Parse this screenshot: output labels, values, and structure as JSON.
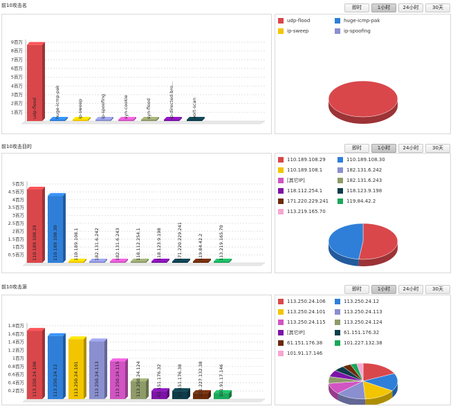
{
  "tabs": [
    "即时",
    "1小时",
    "24小时",
    "30天"
  ],
  "active_tab": 1,
  "sections": [
    {
      "title": "前10攻击名",
      "chart_data": {
        "type": "bar",
        "categories": [
          "udp-flood",
          "huge-icmp-pak",
          "ip-sweep",
          "ip-spoofing",
          "syn-cookie",
          "syn-flood",
          "ip-directed-bro...",
          "port-scan"
        ],
        "values": [
          8.7,
          0.1,
          0.1,
          0.1,
          0.1,
          0.1,
          0.1,
          0.1
        ],
        "colors": [
          "#d9474b",
          "#2f7fd8",
          "#f2c500",
          "#8a8fcf",
          "#d154c2",
          "#8e9b69",
          "#7d12a8",
          "#0d3d4b"
        ],
        "y_ticks": [
          "1百万",
          "2百万",
          "3百万",
          "4百万",
          "5百万",
          "6百万",
          "7百万",
          "8百万",
          "9百万"
        ],
        "ylim": [
          0,
          9
        ],
        "legend": [
          {
            "label": "udp-flood",
            "color": "#d9474b"
          },
          {
            "label": "huge-icmp-pak",
            "color": "#2f7fd8"
          },
          {
            "label": "ip-sweep",
            "color": "#f2c500"
          },
          {
            "label": "ip-spoofing",
            "color": "#8a8fcf"
          }
        ],
        "pie": [
          {
            "value": 100,
            "color": "#d9474b"
          }
        ]
      }
    },
    {
      "title": "前10攻击目的",
      "chart_data": {
        "type": "bar",
        "categories": [
          "110.189.108.29",
          "110.189.108.30",
          "110.189.108.1",
          "182.131.6.242",
          "182.131.6.243",
          "118.112.254.1",
          "118.123.9.198",
          "171.220.229.241",
          "119.84.42.2",
          "113.219.165.70"
        ],
        "values": [
          4.65,
          4.25,
          0.04,
          0.04,
          0.04,
          0.04,
          0.04,
          0.04,
          0.04,
          0.04
        ],
        "colors": [
          "#d9474b",
          "#2f7fd8",
          "#f2c500",
          "#8a8fcf",
          "#d154c2",
          "#8e9b69",
          "#7d12a8",
          "#0d3d4b",
          "#6b2a0a",
          "#1aa85a"
        ],
        "y_ticks": [
          "0.5百万",
          "1百万",
          "1.5百万",
          "2百万",
          "2.5百万",
          "3百万",
          "3.5百万",
          "4百万",
          "4.5百万",
          "5百万"
        ],
        "ylim": [
          0,
          5
        ],
        "legend": [
          {
            "label": "110.189.108.29",
            "color": "#d9474b"
          },
          {
            "label": "110.189.108.30",
            "color": "#2f7fd8"
          },
          {
            "label": "110.189.108.1",
            "color": "#f2c500"
          },
          {
            "label": "182.131.6.242",
            "color": "#8a8fcf"
          },
          {
            "label": "[其它IP]",
            "color": "#d154c2"
          },
          {
            "label": "182.131.6.243",
            "color": "#8e9b69"
          },
          {
            "label": "118.112.254.1",
            "color": "#7d12a8"
          },
          {
            "label": "118.123.9.198",
            "color": "#0d3d4b"
          },
          {
            "label": "171.220.229.241",
            "color": "#6b2a0a"
          },
          {
            "label": "119.84.42.2",
            "color": "#1aa85a"
          },
          {
            "label": "113.219.165.70",
            "color": "#f7a6d2"
          }
        ],
        "pie": [
          {
            "value": 52,
            "color": "#d9474b"
          },
          {
            "value": 48,
            "color": "#2f7fd8"
          }
        ]
      }
    },
    {
      "title": "前10攻击源",
      "chart_data": {
        "type": "bar",
        "categories": [
          "113.250.24.106",
          "113.250.24.12",
          "113.250.24.101",
          "113.250.24.113",
          "113.250.24.115",
          "113.250.24.124",
          "61.151.176.32",
          "61.151.176.38",
          "101.227.132.38",
          "101.91.17.146"
        ],
        "values": [
          1.68,
          1.55,
          1.47,
          1.42,
          0.93,
          0.44,
          0.2,
          0.2,
          0.15,
          0.15
        ],
        "colors": [
          "#d9474b",
          "#2f7fd8",
          "#f2c500",
          "#8a8fcf",
          "#d154c2",
          "#8e9b69",
          "#7d12a8",
          "#0d3d4b",
          "#6b2a0a",
          "#1aa85a"
        ],
        "y_ticks": [
          "0.2百万",
          "0.4百万",
          "0.6百万",
          "0.8百万",
          "1百万",
          "1.2百万",
          "1.4百万",
          "1.6百万",
          "1.8百万"
        ],
        "ylim": [
          0,
          1.8
        ],
        "legend": [
          {
            "label": "113.250.24.106",
            "color": "#d9474b"
          },
          {
            "label": "113.250.24.12",
            "color": "#2f7fd8"
          },
          {
            "label": "113.250.24.101",
            "color": "#f2c500"
          },
          {
            "label": "113.250.24.113",
            "color": "#8a8fcf"
          },
          {
            "label": "113.250.24.115",
            "color": "#d154c2"
          },
          {
            "label": "113.250.24.124",
            "color": "#8e9b69"
          },
          {
            "label": "[其它IP]",
            "color": "#7d12a8"
          },
          {
            "label": "61.151.176.32",
            "color": "#0d3d4b"
          },
          {
            "label": "61.151.176.38",
            "color": "#6b2a0a"
          },
          {
            "label": "101.227.132.38",
            "color": "#1aa85a"
          },
          {
            "label": "101.91.17.146",
            "color": "#f7a6d2"
          }
        ],
        "pie": [
          {
            "value": 18,
            "color": "#d9474b"
          },
          {
            "value": 16,
            "color": "#2f7fd8"
          },
          {
            "value": 15,
            "color": "#f2c500"
          },
          {
            "value": 14,
            "color": "#8a8fcf"
          },
          {
            "value": 10,
            "color": "#d154c2"
          },
          {
            "value": 6,
            "color": "#8e9b69"
          },
          {
            "value": 6,
            "color": "#7d12a8"
          },
          {
            "value": 5,
            "color": "#0d3d4b"
          },
          {
            "value": 4,
            "color": "#6b2a0a"
          },
          {
            "value": 3,
            "color": "#1aa85a"
          },
          {
            "value": 3,
            "color": "#f7a6d2"
          }
        ]
      }
    }
  ]
}
